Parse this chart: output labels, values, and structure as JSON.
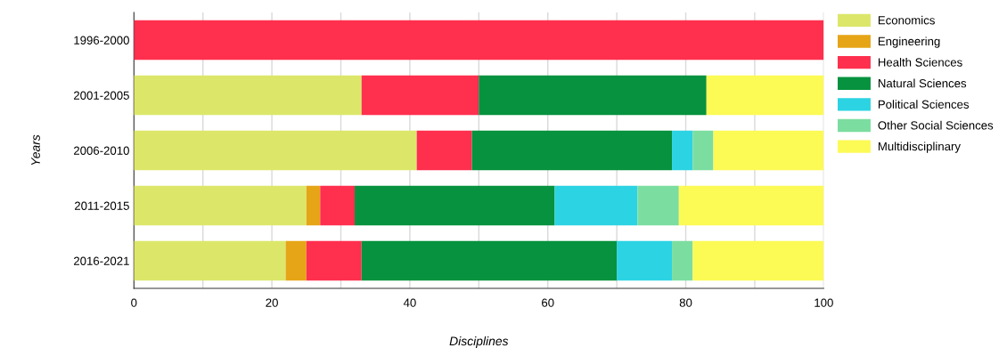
{
  "chart_data": {
    "type": "bar",
    "orientation": "horizontal",
    "stacked": true,
    "xlabel": "Disciplines",
    "ylabel": "Years",
    "categories": [
      "1996-2000",
      "2001-2005",
      "2006-2010",
      "2011-2015",
      "2016-2021"
    ],
    "series": [
      {
        "name": "Economics",
        "color": "#dce76a",
        "values": [
          0,
          33,
          41,
          25,
          22
        ]
      },
      {
        "name": "Engineering",
        "color": "#e6a517",
        "values": [
          0,
          0,
          0,
          2,
          3
        ]
      },
      {
        "name": "Health Sciences",
        "color": "#ff2f4e",
        "values": [
          100,
          17,
          8,
          5,
          8
        ]
      },
      {
        "name": "Natural Sciences",
        "color": "#06923e",
        "values": [
          0,
          33,
          29,
          29,
          37
        ]
      },
      {
        "name": "Political Sciences",
        "color": "#2cd3e3",
        "values": [
          0,
          0,
          3,
          12,
          8
        ]
      },
      {
        "name": "Other Social Sciences",
        "color": "#7cdda0",
        "values": [
          0,
          0,
          3,
          6,
          3
        ]
      },
      {
        "name": "Multidisciplinary",
        "color": "#fcfa55",
        "values": [
          0,
          17,
          16,
          21,
          19
        ]
      }
    ],
    "xlim": [
      0,
      100
    ],
    "xticks": [
      0,
      {
        "value": 10,
        "label": null
      },
      20,
      {
        "value": 30,
        "label": null
      },
      40,
      {
        "value": 50,
        "label": null
      },
      60,
      {
        "value": 70,
        "label": null
      },
      80,
      {
        "value": 90,
        "label": null
      },
      100
    ],
    "grid": "x",
    "legend": "top right"
  }
}
